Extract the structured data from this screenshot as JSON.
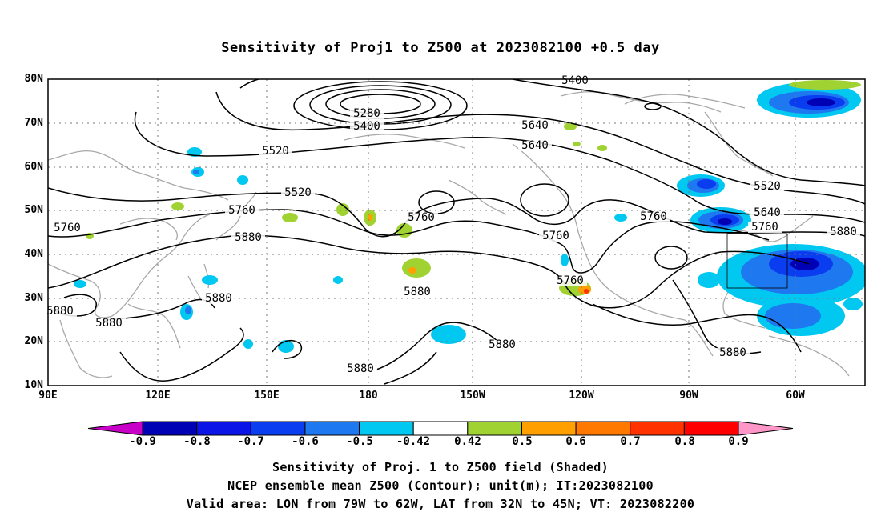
{
  "title": "Sensitivity of Proj1 to Z500 at 2023082100 +0.5 day",
  "map": {
    "lat_labels": [
      "80N",
      "70N",
      "60N",
      "50N",
      "40N",
      "30N",
      "20N",
      "10N"
    ],
    "lon_labels": [
      "90E",
      "120E",
      "150E",
      "180",
      "150W",
      "120W",
      "90W",
      "60W"
    ],
    "contour_labels": [
      "5400",
      "5280",
      "5400",
      "5520",
      "5640",
      "5520",
      "5520",
      "5640",
      "5640",
      "5760",
      "5760",
      "5760",
      "5760",
      "5760",
      "5760",
      "5760",
      "5880",
      "5880",
      "5880",
      "5880",
      "5880",
      "5880",
      "5880",
      "5880",
      "5880",
      "5880",
      "5880"
    ],
    "gridline_style": "dotted",
    "contour_color": "#000000",
    "coastline_color": "#a8a8a8",
    "valid_box": {
      "lon_from": "79W",
      "lon_to": "62W",
      "lat_from": "32N",
      "lat_to": "45N"
    }
  },
  "colorbar": {
    "labels": [
      "-0.9",
      "-0.8",
      "-0.7",
      "-0.6",
      "-0.5",
      "-0.42",
      "0.42",
      "0.5",
      "0.6",
      "0.7",
      "0.8",
      "0.9"
    ],
    "colors": [
      "#c800c8",
      "#0000b4",
      "#0a14e6",
      "#0a3cf0",
      "#1e78f0",
      "#00c8f0",
      "#ffffff",
      "#a0d232",
      "#ffa000",
      "#ff7800",
      "#ff3200",
      "#ff0000",
      "#ff96c8"
    ]
  },
  "footer": {
    "line1": "Sensitivity of Proj. 1 to Z500 field (Shaded)",
    "line2": "NCEP ensemble mean Z500 (Contour); unit(m); IT:2023082100",
    "line3": "Valid area: LON from 79W to 62W, LAT from 32N to 45N; VT: 2023082200"
  }
}
